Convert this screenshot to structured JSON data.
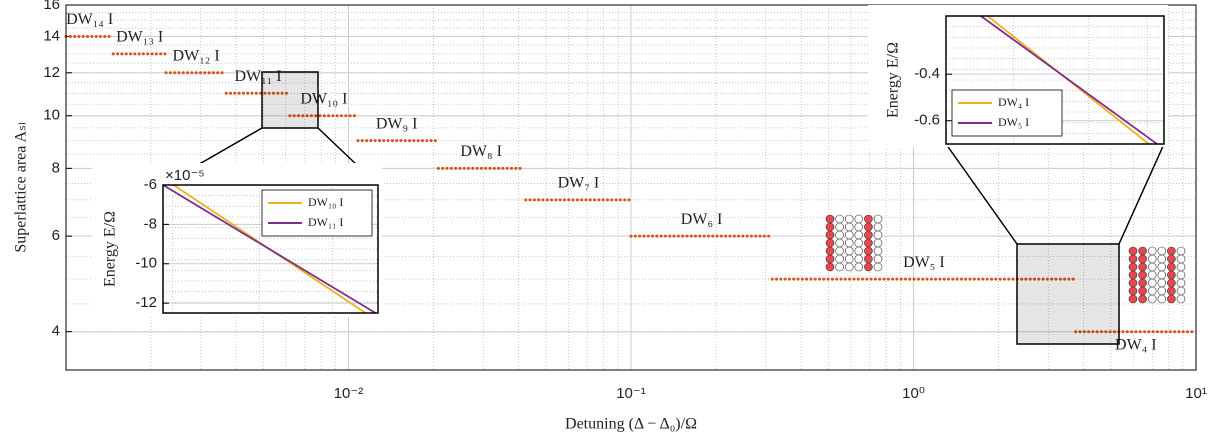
{
  "chart_data": [
    {
      "type": "line",
      "xlabel": "Detuning (Δ − Δ₀)/Ω",
      "ylabel": "Superlattice area Aₛₗ",
      "xscale": "log",
      "yscale": "log",
      "xlim": [
        0.001,
        10
      ],
      "ylim": [
        3.4,
        16
      ],
      "xticks": [
        {
          "value": 0.01,
          "label": "10⁻²"
        },
        {
          "value": 0.1,
          "label": "10⁻¹"
        },
        {
          "value": 1,
          "label": "10⁰"
        },
        {
          "value": 10,
          "label": "10¹"
        }
      ],
      "yticks": [
        4,
        6,
        8,
        10,
        12,
        14,
        16
      ],
      "grid": true,
      "legend": "inline",
      "line_style": "dotted",
      "series": [
        {
          "name": "DW₁₄ I",
          "color": "#d95319",
          "x": [
            0.001,
            0.00147
          ],
          "values": [
            14,
            14
          ]
        },
        {
          "name": "DW₁₃ I",
          "color": "#d95319",
          "x": [
            0.00147,
            0.00226
          ],
          "values": [
            13,
            13
          ]
        },
        {
          "name": "DW₁₂ I",
          "color": "#d95319",
          "x": [
            0.00226,
            0.00369
          ],
          "values": [
            12,
            12
          ]
        },
        {
          "name": "DW₁₁ I",
          "color": "#d95319",
          "x": [
            0.00369,
            0.0062
          ],
          "values": [
            11,
            11
          ]
        },
        {
          "name": "DW₁₀ I",
          "color": "#d95319",
          "x": [
            0.0062,
            0.0108
          ],
          "values": [
            10,
            10
          ]
        },
        {
          "name": "DW₉ I",
          "color": "#d95319",
          "x": [
            0.0108,
            0.0203
          ],
          "values": [
            9,
            9
          ]
        },
        {
          "name": "DW₈ I",
          "color": "#d95319",
          "x": [
            0.0208,
            0.0418
          ],
          "values": [
            8,
            8
          ]
        },
        {
          "name": "DW₇ I",
          "color": "#d95319",
          "x": [
            0.0424,
            0.1
          ],
          "values": [
            7,
            7
          ]
        },
        {
          "name": "DW₆ I",
          "color": "#d95319",
          "x": [
            0.1,
            0.316
          ],
          "values": [
            6,
            6
          ]
        },
        {
          "name": "DW₅ I",
          "color": "#d95319",
          "x": [
            0.316,
            3.75
          ],
          "values": [
            5,
            5
          ]
        },
        {
          "name": "DW₄ I",
          "color": "#d95319",
          "x": [
            3.75,
            10
          ],
          "values": [
            4,
            4
          ]
        }
      ]
    },
    {
      "type": "line",
      "ylabel": "Energy E/Ω",
      "y_multiplier": "×10⁻⁵",
      "xscale": "log",
      "xlim": [
        0.0049,
        0.0077
      ],
      "ylim": [
        -12.5,
        -6
      ],
      "yticks": [
        -6,
        -8,
        -10,
        -12
      ],
      "grid": true,
      "legend": "upper right",
      "line_style": "solid",
      "series": [
        {
          "name": "DW₁₀ I",
          "color": "#edb120",
          "x": [
            0.00501,
            0.0075
          ],
          "values": [
            -6,
            -12.5
          ]
        },
        {
          "name": "DW₁₁ I",
          "color": "#7e2f8e",
          "x": [
            0.0049,
            0.00766
          ],
          "values": [
            -6,
            -12.5
          ]
        }
      ]
    },
    {
      "type": "line",
      "ylabel": "Energy E/Ω",
      "xscale": "log",
      "xlim": [
        2.32,
        5.33
      ],
      "ylim": [
        -0.7,
        -0.15
      ],
      "yticks": [
        -0.4,
        -0.6
      ],
      "grid": true,
      "legend": "lower left",
      "line_style": "solid",
      "series": [
        {
          "name": "DW₄ I",
          "color": "#edb120",
          "x": [
            2.72,
            5.03
          ],
          "values": [
            -0.15,
            -0.7
          ]
        },
        {
          "name": "DW₅ I",
          "color": "#7e2f8e",
          "x": [
            2.65,
            5.19
          ],
          "values": [
            -0.15,
            -0.7
          ]
        }
      ]
    }
  ]
}
